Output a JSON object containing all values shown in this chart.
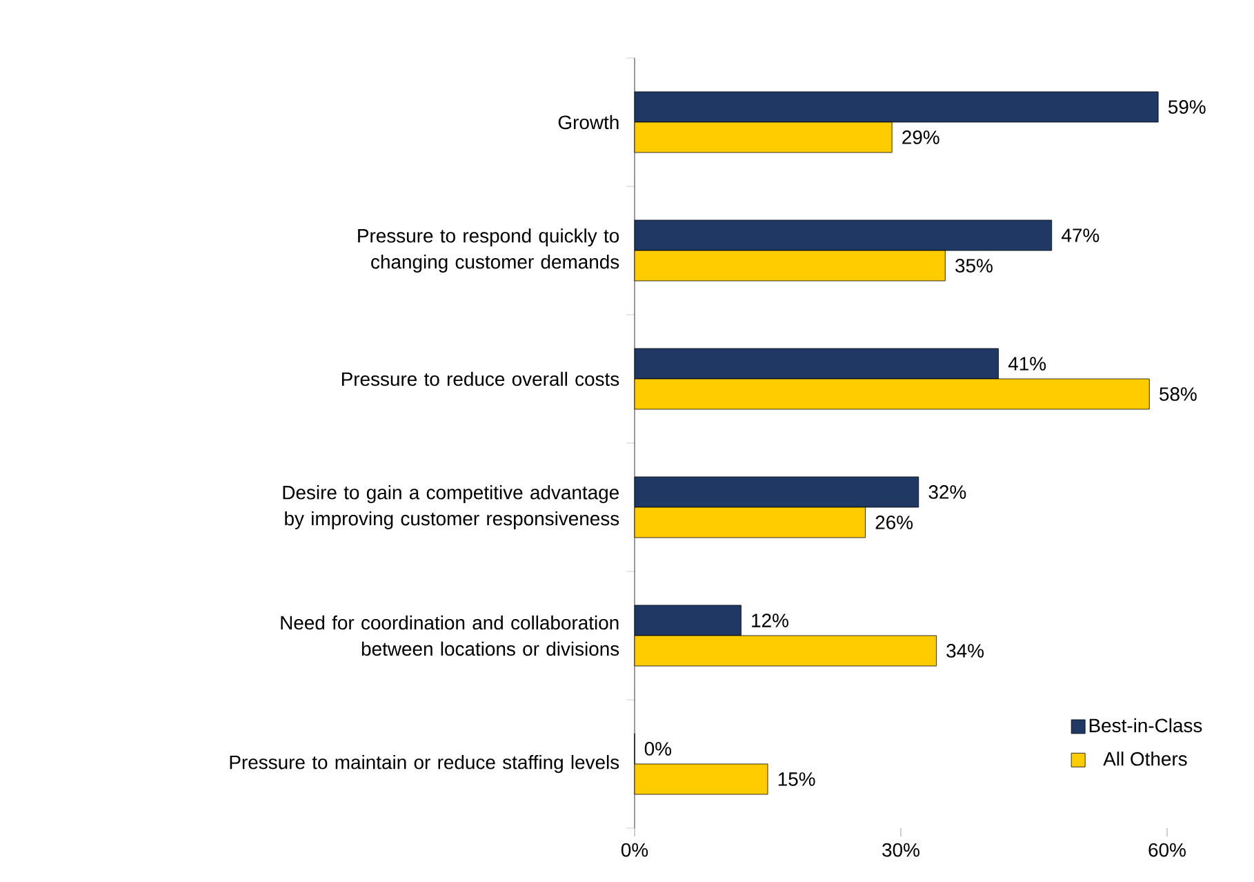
{
  "chart_data": {
    "type": "bar",
    "orientation": "horizontal",
    "categories": [
      "Growth",
      "Pressure to respond quickly to changing customer demands",
      "Pressure to reduce overall costs",
      "Desire to gain a competitive advantage by improving customer responsiveness",
      "Need for coordination and collaboration between locations or divisions",
      "Pressure to maintain or reduce staffing levels"
    ],
    "series": [
      {
        "name": "Best-in-Class",
        "color": "#1f3864",
        "values": [
          59,
          47,
          41,
          32,
          12,
          0
        ],
        "value_labels": [
          "59%",
          "47%",
          "41%",
          "32%",
          "12%",
          "0%"
        ]
      },
      {
        "name": "All Others",
        "color": "#ffcc00",
        "values": [
          29,
          35,
          58,
          26,
          34,
          15
        ],
        "value_labels": [
          "29%",
          "35%",
          "58%",
          "26%",
          "34%",
          "15%"
        ]
      }
    ],
    "xlim": [
      0,
      60
    ],
    "xticks": [
      {
        "value": 0,
        "label": "0%"
      },
      {
        "value": 30,
        "label": "30%"
      },
      {
        "value": 60,
        "label": "60%"
      }
    ],
    "grid": false,
    "legend": "bottom right"
  }
}
